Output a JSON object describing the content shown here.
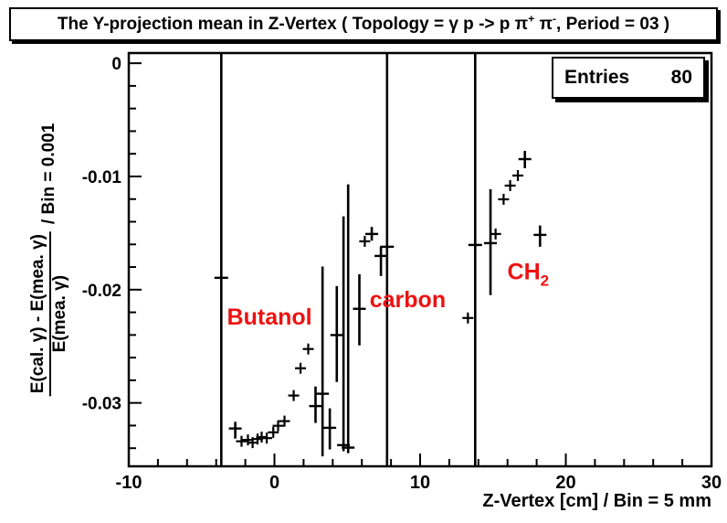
{
  "title": {
    "segments": [
      {
        "t": "The Y-projection mean in Z-Vertex ( Topology = "
      },
      {
        "t": "γ"
      },
      {
        "t": " p -> p "
      },
      {
        "t": "π"
      },
      {
        "t": "+",
        "sup": true
      },
      {
        "t": " "
      },
      {
        "t": "π"
      },
      {
        "t": "-",
        "sup": true
      },
      {
        "t": ", Period = 03 )"
      }
    ]
  },
  "stats": {
    "label": "Entries",
    "value": "80"
  },
  "axes": {
    "x": {
      "title": "Z-Vertex [cm] / Bin = 5 mm",
      "min": -10,
      "max": 30,
      "major_ticks": [
        -10,
        0,
        10,
        20,
        30
      ],
      "major_labels": [
        "-10",
        "0",
        "10",
        "20",
        "30"
      ],
      "minor_step": 2
    },
    "y": {
      "title_numerator": "E(cal. γ) - E(mea. γ)",
      "title_denominator": "E(mea. γ)",
      "title_suffix": "/ Bin = 0.001",
      "min": -0.0356,
      "max": 0.0009,
      "major_ticks": [
        0,
        -0.01,
        -0.02,
        -0.03
      ],
      "major_labels": [
        "0",
        "-0.01",
        "-0.02",
        "-0.03"
      ],
      "minor_step": 0.002
    }
  },
  "chart_data": {
    "type": "scatter",
    "marker": "cross",
    "color": "#000000",
    "label_color": "#ee1111",
    "xlim": [
      -10,
      30
    ],
    "ylim": [
      -0.0356,
      0.0009
    ],
    "grid": false,
    "points": [
      {
        "z": -3.65,
        "v": -0.01895,
        "full": true
      },
      {
        "z": -2.69,
        "v": -0.03226,
        "lo": -0.03315,
        "hi": -0.03167
      },
      {
        "z": -2.26,
        "v": -0.03339
      },
      {
        "z": -1.82,
        "v": -0.03327
      },
      {
        "z": -1.5,
        "v": -0.03351
      },
      {
        "z": -1.16,
        "v": -0.03319
      },
      {
        "z": -0.88,
        "v": -0.03302
      },
      {
        "z": -0.53,
        "v": -0.03311
      },
      {
        "z": -0.08,
        "v": -0.0326
      },
      {
        "z": 0.25,
        "v": -0.03202
      },
      {
        "z": 0.69,
        "v": -0.03161
      },
      {
        "z": 1.32,
        "v": -0.02935
      },
      {
        "z": 1.79,
        "v": -0.02694
      },
      {
        "z": 2.32,
        "v": -0.02524
      },
      {
        "z": 2.82,
        "v": -0.03028,
        "lo": -0.03177,
        "hi": -0.02855
      },
      {
        "z": 3.3,
        "v": -0.02919,
        "lo": -0.03472,
        "hi": -0.01796
      },
      {
        "z": 3.8,
        "v": -0.0322,
        "lo": -0.03411,
        "hi": -0.03048
      },
      {
        "z": 4.28,
        "v": -0.02401,
        "lo": -0.02815,
        "hi": -0.01968
      },
      {
        "z": 4.74,
        "v": -0.03373,
        "lo": -0.03427,
        "hi": -0.01352
      },
      {
        "z": 5.06,
        "v": -0.03395,
        "lo": -0.03444,
        "hi": -0.0107
      },
      {
        "z": 5.83,
        "v": -0.02169,
        "lo": -0.02492,
        "hi": -0.01863
      },
      {
        "z": 6.2,
        "v": -0.01573
      },
      {
        "z": 6.68,
        "v": -0.01508,
        "lo": -0.01567,
        "hi": -0.01446
      },
      {
        "z": 7.31,
        "v": -0.01702,
        "lo": -0.01879,
        "hi": -0.01621
      },
      {
        "z": 7.73,
        "v": -0.01621,
        "full": true
      },
      {
        "z": 13.28,
        "v": -0.0225
      },
      {
        "z": 13.78,
        "v": -0.01605,
        "full": true
      },
      {
        "z": 14.83,
        "v": -0.01589,
        "lo": -0.02048,
        "hi": -0.01113
      },
      {
        "z": 15.18,
        "v": -0.01508
      },
      {
        "z": 15.73,
        "v": -0.01202
      },
      {
        "z": 16.18,
        "v": -0.01081
      },
      {
        "z": 16.71,
        "v": -0.00992
      },
      {
        "z": 17.19,
        "v": -0.00847,
        "lo": -0.00927,
        "hi": -0.00774
      },
      {
        "z": 18.23,
        "v": -0.01516,
        "lo": -0.01621,
        "hi": -0.01433
      }
    ],
    "annotations": [
      {
        "text": "Butanol",
        "x": -0.34,
        "y": -0.02234
      },
      {
        "text": "carbon",
        "x": 9.15,
        "y": -0.02081
      },
      {
        "text": "CH",
        "sub": "2",
        "x": 17.42,
        "y": -0.01835
      }
    ]
  }
}
